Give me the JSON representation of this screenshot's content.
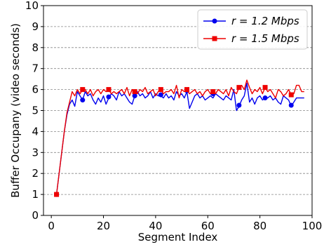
{
  "chart_data": {
    "type": "line",
    "xlabel": "Segment Index",
    "ylabel": "Buffer Occupany (video seconds)",
    "xlim": [
      -3,
      100
    ],
    "ylim": [
      0,
      10
    ],
    "xticks": [
      0,
      20,
      40,
      60,
      80,
      100
    ],
    "yticks": [
      0,
      1,
      2,
      3,
      4,
      5,
      6,
      7,
      8,
      9,
      10
    ],
    "grid": "horizontal-dashed",
    "legend_position": "top-right",
    "series": [
      {
        "name": "r = 1.2 Mbps",
        "name_prefix": "r = 1.2 ",
        "name_unit": "Mbps",
        "color": "#0000ee",
        "marker": "circle",
        "x": [
          2,
          3,
          4,
          5,
          6,
          7,
          8,
          9,
          10,
          11,
          12,
          13,
          14,
          15,
          16,
          17,
          18,
          19,
          20,
          21,
          22,
          23,
          24,
          25,
          26,
          27,
          28,
          29,
          30,
          31,
          32,
          33,
          34,
          35,
          36,
          37,
          38,
          39,
          40,
          41,
          42,
          43,
          44,
          45,
          46,
          47,
          48,
          49,
          50,
          51,
          52,
          53,
          54,
          55,
          56,
          57,
          58,
          59,
          60,
          61,
          62,
          63,
          64,
          65,
          66,
          67,
          68,
          69,
          70,
          71,
          72,
          73,
          74,
          75,
          76,
          77,
          78,
          79,
          80,
          81,
          82,
          83,
          84,
          85,
          86,
          87,
          88,
          89,
          90,
          91,
          92,
          93,
          94,
          95,
          96,
          97
        ],
        "y": [
          1.0,
          2.0,
          3.0,
          4.0,
          4.8,
          5.3,
          5.5,
          5.2,
          5.9,
          5.7,
          5.5,
          5.9,
          5.7,
          5.8,
          5.5,
          5.3,
          5.6,
          5.4,
          5.7,
          5.3,
          5.6,
          5.8,
          5.7,
          5.5,
          5.9,
          5.7,
          5.8,
          5.6,
          5.4,
          5.3,
          5.7,
          5.9,
          5.7,
          5.8,
          5.6,
          5.7,
          5.9,
          5.6,
          5.8,
          5.7,
          5.7,
          5.6,
          5.8,
          5.6,
          5.7,
          5.5,
          5.9,
          5.7,
          5.8,
          5.6,
          5.9,
          5.1,
          5.4,
          5.7,
          5.8,
          5.6,
          5.7,
          5.5,
          5.6,
          5.7,
          5.6,
          5.8,
          5.7,
          5.6,
          5.5,
          5.7,
          5.6,
          5.5,
          6.0,
          5.0,
          5.2,
          5.5,
          5.7,
          6.3,
          5.4,
          5.6,
          5.3,
          5.6,
          5.7,
          5.5,
          5.6,
          5.6,
          5.7,
          5.5,
          5.6,
          5.4,
          5.3,
          5.7,
          5.6,
          5.5,
          5.2,
          5.4,
          5.6,
          5.6,
          5.6,
          5.6
        ],
        "marker_x": [
          2,
          12,
          22,
          32,
          42,
          52,
          62,
          72,
          82,
          92
        ],
        "marker_y": [
          1.0,
          5.5,
          5.65,
          5.7,
          5.75,
          5.95,
          5.8,
          5.25,
          5.6,
          5.25
        ]
      },
      {
        "name": "r = 1.5 Mbps",
        "name_prefix": "r = 1.5 ",
        "name_unit": "Mbps",
        "color": "#ee0000",
        "marker": "square",
        "x": [
          2,
          3,
          4,
          5,
          6,
          7,
          8,
          9,
          10,
          11,
          12,
          13,
          14,
          15,
          16,
          17,
          18,
          19,
          20,
          21,
          22,
          23,
          24,
          25,
          26,
          27,
          28,
          29,
          30,
          31,
          32,
          33,
          34,
          35,
          36,
          37,
          38,
          39,
          40,
          41,
          42,
          43,
          44,
          45,
          46,
          47,
          48,
          49,
          50,
          51,
          52,
          53,
          54,
          55,
          56,
          57,
          58,
          59,
          60,
          61,
          62,
          63,
          64,
          65,
          66,
          67,
          68,
          69,
          70,
          71,
          72,
          73,
          74,
          75,
          76,
          77,
          78,
          79,
          80,
          81,
          82,
          83,
          84,
          85,
          86,
          87,
          88,
          89,
          90,
          91,
          92,
          93,
          94,
          95,
          96,
          97
        ],
        "y": [
          1.0,
          2.0,
          3.0,
          4.0,
          4.9,
          5.4,
          5.9,
          5.7,
          6.0,
          5.8,
          6.0,
          6.0,
          5.8,
          6.0,
          5.7,
          5.9,
          6.0,
          5.8,
          6.0,
          5.9,
          6.0,
          5.8,
          5.9,
          5.8,
          5.9,
          6.0,
          5.8,
          6.1,
          5.7,
          6.0,
          5.9,
          5.8,
          6.0,
          5.9,
          6.1,
          5.8,
          5.9,
          6.0,
          5.7,
          5.9,
          6.0,
          5.8,
          5.9,
          5.9,
          6.0,
          5.8,
          6.2,
          5.6,
          6.0,
          5.9,
          6.0,
          5.8,
          5.9,
          6.0,
          5.8,
          5.9,
          5.7,
          5.9,
          6.0,
          5.8,
          5.9,
          5.8,
          6.0,
          5.9,
          5.8,
          6.0,
          5.7,
          6.1,
          5.9,
          5.8,
          6.1,
          6.2,
          6.0,
          6.45,
          6.1,
          5.8,
          6.0,
          5.9,
          6.1,
          5.8,
          6.1,
          5.9,
          6.0,
          5.8,
          5.6,
          6.0,
          5.9,
          5.7,
          5.8,
          6.0,
          5.75,
          5.8,
          6.2,
          6.2,
          5.9,
          5.9
        ],
        "marker_x": [
          2,
          12,
          22,
          32,
          42,
          52,
          62,
          72,
          82,
          92
        ],
        "marker_y": [
          1.0,
          6.0,
          6.0,
          5.9,
          6.0,
          6.0,
          5.9,
          6.1,
          6.1,
          5.75
        ]
      }
    ]
  }
}
